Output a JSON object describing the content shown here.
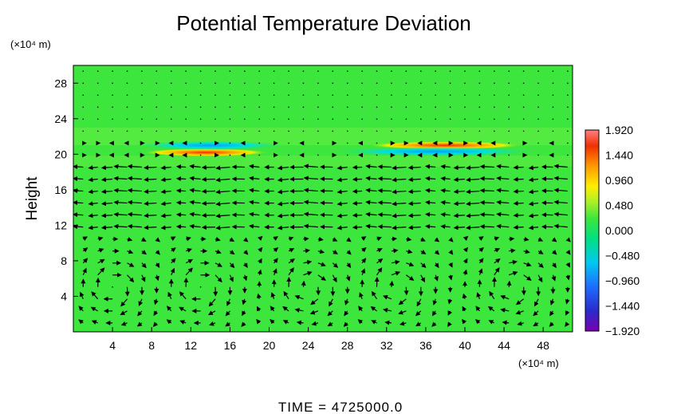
{
  "chart_data": {
    "type": "heatmap",
    "title": "Potential Temperature Deviation",
    "ylabel": "Height",
    "x_unit": "(×10⁴ m)",
    "y_unit": "(×10⁴ m)",
    "xlim": [
      0,
      51
    ],
    "ylim": [
      0,
      30
    ],
    "x_ticks": [
      "4",
      "8",
      "12",
      "16",
      "20",
      "24",
      "28",
      "32",
      "36",
      "40",
      "44",
      "48"
    ],
    "y_ticks": [
      "4",
      "8",
      "12",
      "16",
      "20",
      "24",
      "28"
    ],
    "x_tick_values": [
      4,
      8,
      12,
      16,
      20,
      24,
      28,
      32,
      36,
      40,
      44,
      48
    ],
    "y_tick_values": [
      4,
      8,
      12,
      16,
      20,
      24,
      28
    ],
    "colorbar": {
      "range": [
        -1.92,
        1.92
      ],
      "labels": [
        "1.920",
        "1.440",
        "0.960",
        "0.480",
        "0.000",
        "−0.480",
        "−0.960",
        "−1.440",
        "−1.920"
      ],
      "values": [
        1.92,
        1.44,
        0.96,
        0.48,
        0.0,
        -0.48,
        -0.96,
        -1.44,
        -1.92
      ]
    },
    "background_value": 0.0,
    "anomaly_bands": [
      {
        "x_range": [
          7,
          20
        ],
        "y_center": 20.2,
        "value": 1.6
      },
      {
        "x_range": [
          6,
          22
        ],
        "y_center": 21.0,
        "value": -0.7
      },
      {
        "x_range": [
          30,
          46
        ],
        "y_center": 21.0,
        "value": 1.7
      },
      {
        "x_range": [
          26,
          48
        ],
        "y_center": 20.3,
        "value": -0.6
      }
    ],
    "vector_field": "wind vectors overlaid: easterly flow near 12–18, circulation cells below 10",
    "grid": false,
    "footer": "TIME  =  4725000.0"
  }
}
